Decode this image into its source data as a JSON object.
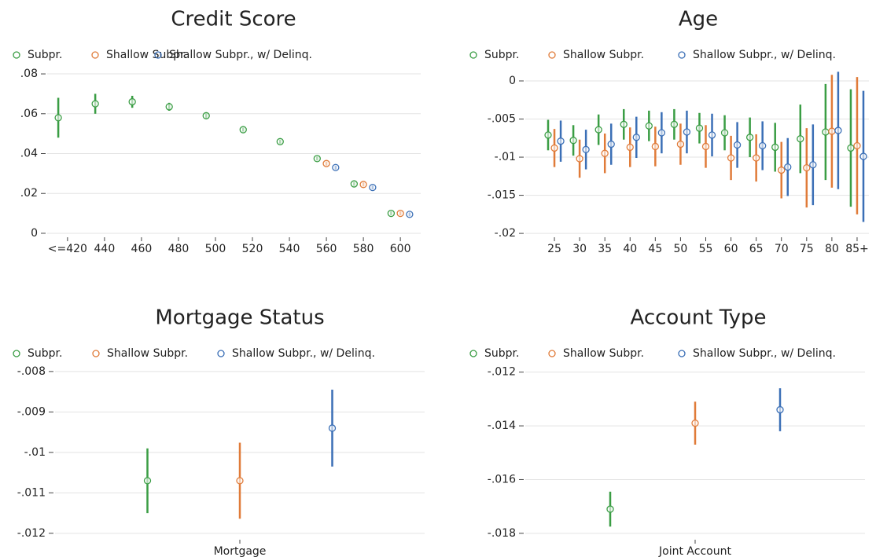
{
  "chart_data": [
    {
      "type": "errorbar",
      "title": "Credit Score",
      "xlim": [
        409,
        611
      ],
      "xticks": [
        {
          "value": 420,
          "label": "<=420"
        },
        440,
        460,
        480,
        500,
        520,
        540,
        560,
        580,
        600
      ],
      "ylim": [
        -0.0012,
        0.0816
      ],
      "yticks": [
        {
          "value": 0,
          "label": "0"
        },
        {
          "value": 0.02,
          "label": ".02"
        },
        {
          "value": 0.04,
          "label": ".04"
        },
        {
          "value": 0.06,
          "label": ".06"
        },
        {
          "value": 0.08,
          "label": ".08"
        }
      ],
      "grid": true,
      "series": [
        {
          "name": "Subpr.",
          "color": "#3a9d44",
          "x": [
            415,
            435,
            455,
            475,
            495,
            515,
            535,
            555,
            575,
            595
          ],
          "values": [
            0.058,
            0.065,
            0.066,
            0.0635,
            0.059,
            0.052,
            0.046,
            0.0375,
            0.0248,
            0.01
          ],
          "errors": [
            0.01,
            0.005,
            0.003,
            0.002,
            0.0015,
            0.001,
            0.001,
            0.001,
            0.001,
            0.001
          ]
        },
        {
          "name": "Shallow Subpr.",
          "color": "#e07b39",
          "x": [
            560,
            580,
            600
          ],
          "values": [
            0.035,
            0.0245,
            0.01
          ],
          "errors": [
            0.001,
            0.001,
            0.001
          ]
        },
        {
          "name": "Shallow Subpr., w/ Delinq.",
          "color": "#3b6fb6",
          "x": [
            565,
            585,
            605
          ],
          "values": [
            0.033,
            0.023,
            0.0095
          ],
          "errors": [
            0.001,
            0.001,
            0.001
          ]
        }
      ]
    },
    {
      "type": "errorbar",
      "title": "Age",
      "categories": [
        "25",
        "30",
        "35",
        "40",
        "45",
        "50",
        "55",
        "60",
        "65",
        "70",
        "75",
        "80",
        "85+"
      ],
      "ylim": [
        -0.0203,
        0.00134
      ],
      "yticks": [
        {
          "value": -0.02,
          "label": "-.02"
        },
        {
          "value": -0.015,
          "label": "-.015"
        },
        {
          "value": -0.01,
          "label": "-.01"
        },
        {
          "value": -0.005,
          "label": "-.005"
        },
        0
      ],
      "grid": true,
      "series": [
        {
          "name": "Subpr.",
          "color": "#3a9d44",
          "values": [
            -0.0071,
            -0.0078,
            -0.0064,
            -0.0057,
            -0.0059,
            -0.0057,
            -0.0062,
            -0.0068,
            -0.0074,
            -0.0087,
            -0.0076,
            -0.0067,
            -0.0088
          ],
          "errors": [
            0.002,
            0.002,
            0.002,
            0.002,
            0.002,
            0.002,
            0.002,
            0.0023,
            0.0026,
            0.0032,
            0.0045,
            0.0063,
            0.0077
          ]
        },
        {
          "name": "Shallow Subpr.",
          "color": "#e07b39",
          "values": [
            -0.0088,
            -0.0102,
            -0.0095,
            -0.0087,
            -0.0086,
            -0.0083,
            -0.0086,
            -0.0101,
            -0.0101,
            -0.0117,
            -0.0114,
            -0.0066,
            -0.0085
          ],
          "errors": [
            0.0025,
            0.0025,
            0.0026,
            0.0026,
            0.0026,
            0.0027,
            0.0028,
            0.0029,
            0.0031,
            0.0037,
            0.0052,
            0.0074,
            0.009
          ]
        },
        {
          "name": "Shallow Subpr., w/ Delinq.",
          "color": "#3b6fb6",
          "values": [
            -0.0079,
            -0.009,
            -0.0083,
            -0.0074,
            -0.0068,
            -0.0067,
            -0.0071,
            -0.0084,
            -0.0085,
            -0.0113,
            -0.011,
            -0.0065,
            -0.0099
          ],
          "errors": [
            0.0027,
            0.0026,
            0.0027,
            0.0027,
            0.0027,
            0.0028,
            0.0028,
            0.003,
            0.0032,
            0.0038,
            0.0053,
            0.0077,
            0.0086
          ]
        }
      ]
    },
    {
      "type": "errorbar",
      "title": "Mortgage Status",
      "categories": [
        "Mortgage"
      ],
      "ylim": [
        -0.01212,
        -0.00775
      ],
      "yticks": [
        {
          "value": -0.012,
          "label": "-.012"
        },
        {
          "value": -0.011,
          "label": "-.011"
        },
        {
          "value": -0.01,
          "label": "-.01"
        },
        {
          "value": -0.009,
          "label": "-.009"
        },
        {
          "value": -0.008,
          "label": "-.008"
        }
      ],
      "grid": true,
      "series": [
        {
          "name": "Subpr.",
          "color": "#3a9d44",
          "values": [
            -0.0107
          ],
          "errors": [
            0.0008
          ]
        },
        {
          "name": "Shallow Subpr.",
          "color": "#e07b39",
          "values": [
            -0.0107
          ],
          "errors": [
            0.00094
          ]
        },
        {
          "name": "Shallow Subpr., w/ Delinq.",
          "color": "#3b6fb6",
          "values": [
            -0.0094
          ],
          "errors": [
            0.00095
          ]
        }
      ]
    },
    {
      "type": "errorbar",
      "title": "Account Type",
      "categories": [
        "Joint Account"
      ],
      "ylim": [
        -0.01818,
        -0.0116
      ],
      "yticks": [
        {
          "value": -0.018,
          "label": "-.018"
        },
        {
          "value": -0.016,
          "label": "-.016"
        },
        {
          "value": -0.014,
          "label": "-.014"
        },
        {
          "value": -0.012,
          "label": "-.012"
        }
      ],
      "grid": true,
      "series": [
        {
          "name": "Subpr.",
          "color": "#3a9d44",
          "values": [
            -0.0171
          ],
          "errors": [
            0.00065
          ]
        },
        {
          "name": "Shallow Subpr.",
          "color": "#e07b39",
          "values": [
            -0.0139
          ],
          "errors": [
            0.0008
          ]
        },
        {
          "name": "Shallow Subpr., w/ Delinq.",
          "color": "#3b6fb6",
          "values": [
            -0.0134
          ],
          "errors": [
            0.0008
          ]
        }
      ]
    }
  ]
}
